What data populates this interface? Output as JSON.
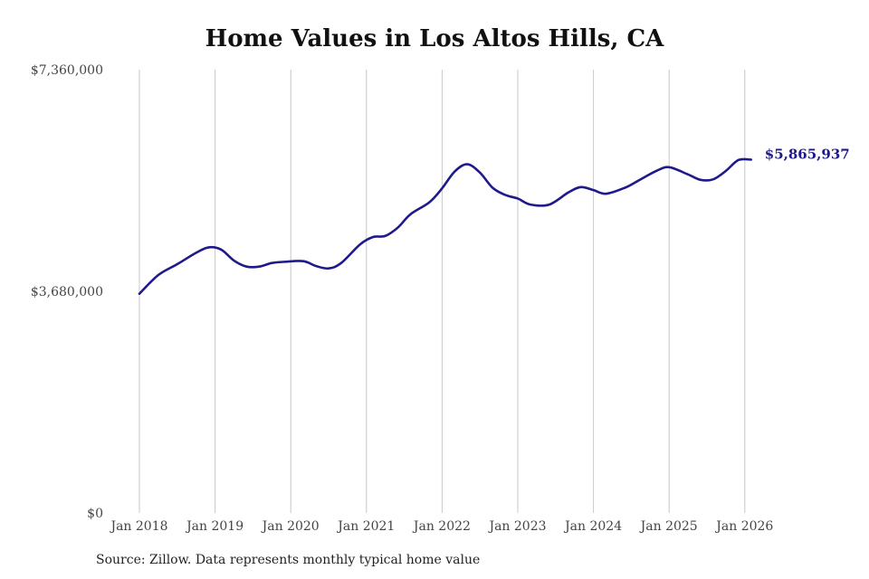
{
  "chart_data": {
    "type": "line",
    "title": "Home Values in Los Altos Hills, CA",
    "xlabel": "",
    "ylabel": "",
    "x_ticks": [
      "Jan 2018",
      "Jan 2019",
      "Jan 2020",
      "Jan 2021",
      "Jan 2022",
      "Jan 2023",
      "Jan 2024",
      "Jan 2025",
      "Jan 2026"
    ],
    "y_ticks": [
      {
        "value": 0,
        "label": "$0"
      },
      {
        "value": 3680000,
        "label": "$3,680,000"
      },
      {
        "value": 7360000,
        "label": "$7,360,000"
      }
    ],
    "ylim": [
      0,
      7360000
    ],
    "xlim": [
      "2018-01",
      "2026-02"
    ],
    "grid": "vertical",
    "series": [
      {
        "color": "#1f1a8a",
        "points": [
          [
            "2018-01",
            3640000
          ],
          [
            "2018-04",
            3950000
          ],
          [
            "2018-07",
            4130000
          ],
          [
            "2018-10",
            4320000
          ],
          [
            "2018-12",
            4410000
          ],
          [
            "2019-02",
            4370000
          ],
          [
            "2019-04",
            4190000
          ],
          [
            "2019-06",
            4090000
          ],
          [
            "2019-08",
            4090000
          ],
          [
            "2019-10",
            4150000
          ],
          [
            "2019-12",
            4170000
          ],
          [
            "2020-03",
            4180000
          ],
          [
            "2020-05",
            4100000
          ],
          [
            "2020-07",
            4060000
          ],
          [
            "2020-09",
            4150000
          ],
          [
            "2020-12",
            4460000
          ],
          [
            "2021-02",
            4580000
          ],
          [
            "2021-04",
            4600000
          ],
          [
            "2021-06",
            4740000
          ],
          [
            "2021-08",
            4960000
          ],
          [
            "2021-11",
            5160000
          ],
          [
            "2022-01",
            5390000
          ],
          [
            "2022-03",
            5670000
          ],
          [
            "2022-05",
            5790000
          ],
          [
            "2022-07",
            5650000
          ],
          [
            "2022-09",
            5400000
          ],
          [
            "2022-11",
            5280000
          ],
          [
            "2023-01",
            5220000
          ],
          [
            "2023-03",
            5120000
          ],
          [
            "2023-06",
            5120000
          ],
          [
            "2023-09",
            5320000
          ],
          [
            "2023-11",
            5410000
          ],
          [
            "2024-01",
            5360000
          ],
          [
            "2024-03",
            5300000
          ],
          [
            "2024-06",
            5400000
          ],
          [
            "2024-08",
            5510000
          ],
          [
            "2024-11",
            5680000
          ],
          [
            "2025-01",
            5740000
          ],
          [
            "2025-04",
            5620000
          ],
          [
            "2025-06",
            5530000
          ],
          [
            "2025-08",
            5540000
          ],
          [
            "2025-10",
            5680000
          ],
          [
            "2025-12",
            5860000
          ],
          [
            "2026-02",
            5865937
          ]
        ]
      }
    ],
    "end_label": "$5,865,937",
    "source": "Source: Zillow. Data represents monthly typical home value"
  }
}
